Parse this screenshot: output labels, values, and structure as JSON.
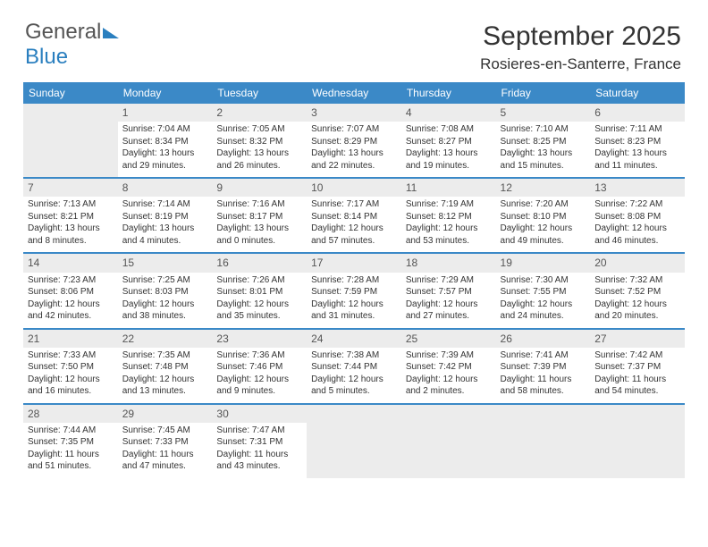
{
  "brand": {
    "part1": "General",
    "part2": "Blue"
  },
  "title": "September 2025",
  "location": "Rosieres-en-Santerre, France",
  "headers": [
    "Sunday",
    "Monday",
    "Tuesday",
    "Wednesday",
    "Thursday",
    "Friday",
    "Saturday"
  ],
  "colors": {
    "accent": "#3b89c7",
    "bg": "#ffffff",
    "empty": "#ececec"
  },
  "firstDayOffset": 1,
  "daysInMonth": 30,
  "days": [
    {
      "n": 1,
      "sr": "7:04 AM",
      "ss": "8:34 PM",
      "dl": "13 hours and 29 minutes."
    },
    {
      "n": 2,
      "sr": "7:05 AM",
      "ss": "8:32 PM",
      "dl": "13 hours and 26 minutes."
    },
    {
      "n": 3,
      "sr": "7:07 AM",
      "ss": "8:29 PM",
      "dl": "13 hours and 22 minutes."
    },
    {
      "n": 4,
      "sr": "7:08 AM",
      "ss": "8:27 PM",
      "dl": "13 hours and 19 minutes."
    },
    {
      "n": 5,
      "sr": "7:10 AM",
      "ss": "8:25 PM",
      "dl": "13 hours and 15 minutes."
    },
    {
      "n": 6,
      "sr": "7:11 AM",
      "ss": "8:23 PM",
      "dl": "13 hours and 11 minutes."
    },
    {
      "n": 7,
      "sr": "7:13 AM",
      "ss": "8:21 PM",
      "dl": "13 hours and 8 minutes."
    },
    {
      "n": 8,
      "sr": "7:14 AM",
      "ss": "8:19 PM",
      "dl": "13 hours and 4 minutes."
    },
    {
      "n": 9,
      "sr": "7:16 AM",
      "ss": "8:17 PM",
      "dl": "13 hours and 0 minutes."
    },
    {
      "n": 10,
      "sr": "7:17 AM",
      "ss": "8:14 PM",
      "dl": "12 hours and 57 minutes."
    },
    {
      "n": 11,
      "sr": "7:19 AM",
      "ss": "8:12 PM",
      "dl": "12 hours and 53 minutes."
    },
    {
      "n": 12,
      "sr": "7:20 AM",
      "ss": "8:10 PM",
      "dl": "12 hours and 49 minutes."
    },
    {
      "n": 13,
      "sr": "7:22 AM",
      "ss": "8:08 PM",
      "dl": "12 hours and 46 minutes."
    },
    {
      "n": 14,
      "sr": "7:23 AM",
      "ss": "8:06 PM",
      "dl": "12 hours and 42 minutes."
    },
    {
      "n": 15,
      "sr": "7:25 AM",
      "ss": "8:03 PM",
      "dl": "12 hours and 38 minutes."
    },
    {
      "n": 16,
      "sr": "7:26 AM",
      "ss": "8:01 PM",
      "dl": "12 hours and 35 minutes."
    },
    {
      "n": 17,
      "sr": "7:28 AM",
      "ss": "7:59 PM",
      "dl": "12 hours and 31 minutes."
    },
    {
      "n": 18,
      "sr": "7:29 AM",
      "ss": "7:57 PM",
      "dl": "12 hours and 27 minutes."
    },
    {
      "n": 19,
      "sr": "7:30 AM",
      "ss": "7:55 PM",
      "dl": "12 hours and 24 minutes."
    },
    {
      "n": 20,
      "sr": "7:32 AM",
      "ss": "7:52 PM",
      "dl": "12 hours and 20 minutes."
    },
    {
      "n": 21,
      "sr": "7:33 AM",
      "ss": "7:50 PM",
      "dl": "12 hours and 16 minutes."
    },
    {
      "n": 22,
      "sr": "7:35 AM",
      "ss": "7:48 PM",
      "dl": "12 hours and 13 minutes."
    },
    {
      "n": 23,
      "sr": "7:36 AM",
      "ss": "7:46 PM",
      "dl": "12 hours and 9 minutes."
    },
    {
      "n": 24,
      "sr": "7:38 AM",
      "ss": "7:44 PM",
      "dl": "12 hours and 5 minutes."
    },
    {
      "n": 25,
      "sr": "7:39 AM",
      "ss": "7:42 PM",
      "dl": "12 hours and 2 minutes."
    },
    {
      "n": 26,
      "sr": "7:41 AM",
      "ss": "7:39 PM",
      "dl": "11 hours and 58 minutes."
    },
    {
      "n": 27,
      "sr": "7:42 AM",
      "ss": "7:37 PM",
      "dl": "11 hours and 54 minutes."
    },
    {
      "n": 28,
      "sr": "7:44 AM",
      "ss": "7:35 PM",
      "dl": "11 hours and 51 minutes."
    },
    {
      "n": 29,
      "sr": "7:45 AM",
      "ss": "7:33 PM",
      "dl": "11 hours and 47 minutes."
    },
    {
      "n": 30,
      "sr": "7:47 AM",
      "ss": "7:31 PM",
      "dl": "11 hours and 43 minutes."
    }
  ],
  "labels": {
    "sunrise": "Sunrise:",
    "sunset": "Sunset:",
    "daylight": "Daylight:"
  }
}
